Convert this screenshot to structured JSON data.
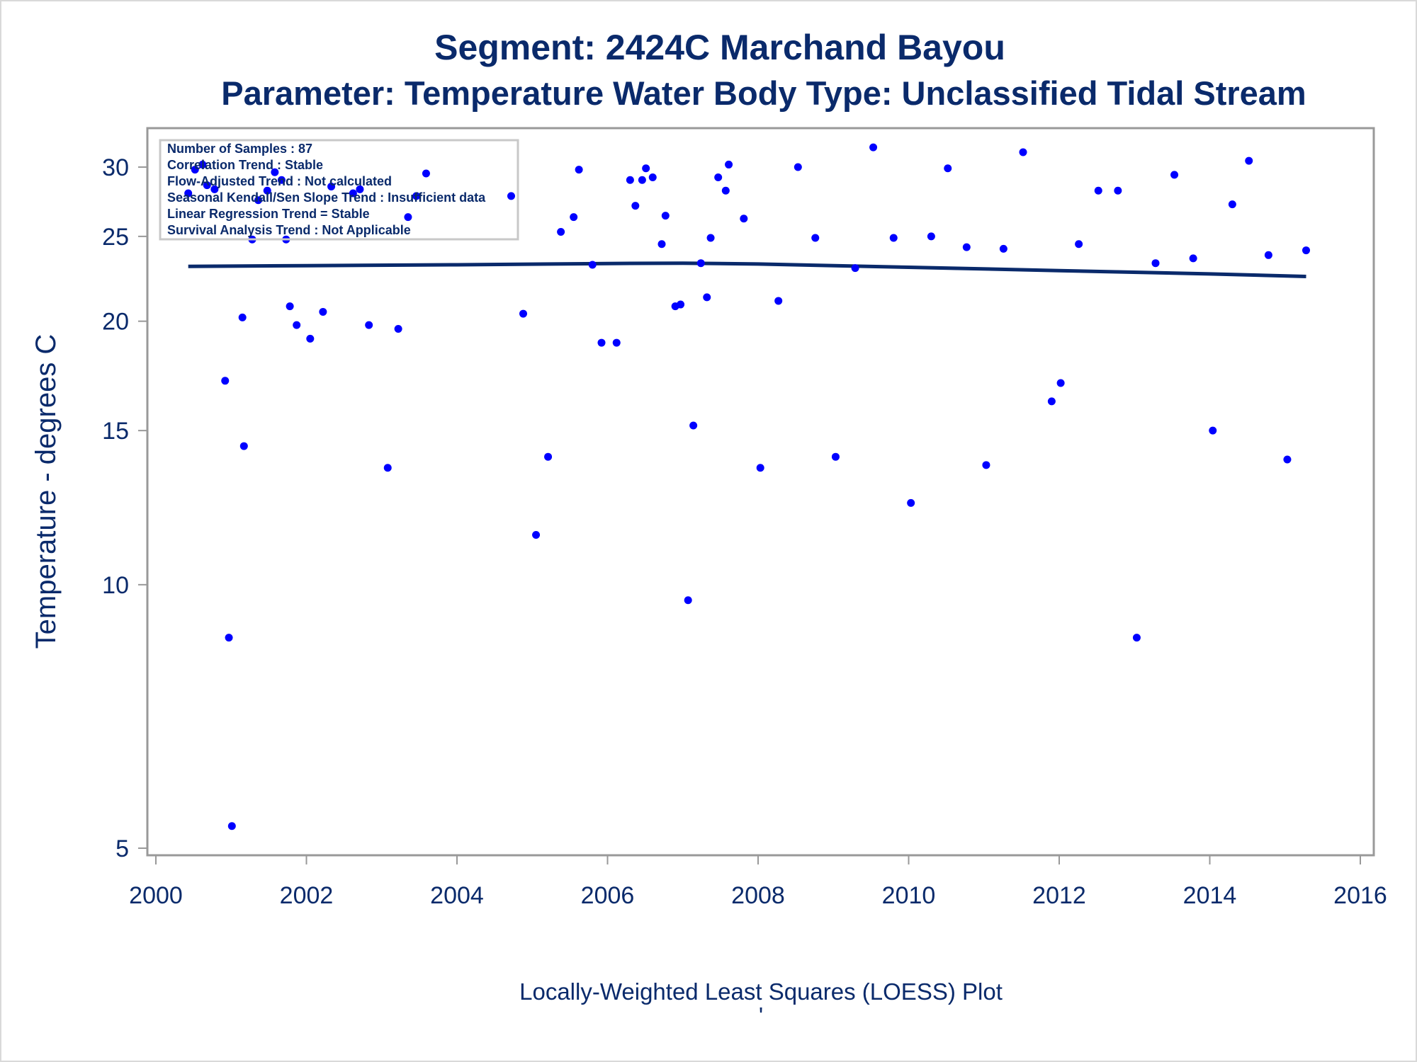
{
  "colors": {
    "text": "#0a2a6b",
    "points": "#0000ff",
    "loess_line": "#0a2a6b",
    "frame": "#999999"
  },
  "chart_data": {
    "type": "scatter",
    "title": "Segment: 2424C  Marchand Bayou",
    "subtitle": "Parameter: Temperature   Water Body Type: Unclassified Tidal Stream",
    "xlabel": "Locally-Weighted Least Squares (LOESS) Plot",
    "ylabel": "Temperature - degrees C",
    "footnote": "'",
    "y_scale": "log",
    "xlim": [
      2000,
      2016
    ],
    "ylim": [
      5,
      32
    ],
    "x_ticks": [
      "2000",
      "2002",
      "2004",
      "2006",
      "2008",
      "2010",
      "2012",
      "2014",
      "2016"
    ],
    "y_ticks": [
      "5",
      "10",
      "15",
      "20",
      "25",
      "30"
    ],
    "grid": false,
    "legend_position": "top-left",
    "inset_text": [
      "Number of Samples : 87",
      "Correlation Trend : Stable",
      "Flow-Adjusted Trend : Not calculated",
      "Seasonal Kendall/Sen Slope Trend : Insufficient data",
      "Linear Regression Trend = Stable",
      "Survival Analysis Trend : Not Applicable"
    ],
    "series": [
      {
        "type": "scatter",
        "points": [
          [
            2000.43,
            28.0
          ],
          [
            2000.52,
            29.8
          ],
          [
            2000.62,
            30.2
          ],
          [
            2000.68,
            28.6
          ],
          [
            2000.78,
            28.3
          ],
          [
            2000.92,
            17.1
          ],
          [
            2000.97,
            8.7
          ],
          [
            2001.01,
            5.3
          ],
          [
            2001.15,
            20.2
          ],
          [
            2001.17,
            14.4
          ],
          [
            2001.28,
            24.8
          ],
          [
            2001.36,
            27.5
          ],
          [
            2001.48,
            28.2
          ],
          [
            2001.58,
            29.6
          ],
          [
            2001.67,
            29.0
          ],
          [
            2001.73,
            24.8
          ],
          [
            2001.78,
            20.8
          ],
          [
            2001.87,
            19.8
          ],
          [
            2002.05,
            19.1
          ],
          [
            2002.22,
            20.5
          ],
          [
            2002.33,
            28.5
          ],
          [
            2002.62,
            28.0
          ],
          [
            2002.71,
            28.3
          ],
          [
            2002.83,
            19.8
          ],
          [
            2003.08,
            13.6
          ],
          [
            2003.22,
            19.6
          ],
          [
            2003.35,
            26.3
          ],
          [
            2003.46,
            27.8
          ],
          [
            2003.59,
            29.5
          ],
          [
            2004.72,
            27.8
          ],
          [
            2004.88,
            20.4
          ],
          [
            2005.05,
            11.4
          ],
          [
            2005.21,
            14.0
          ],
          [
            2005.38,
            25.3
          ],
          [
            2005.55,
            26.3
          ],
          [
            2005.62,
            29.8
          ],
          [
            2005.8,
            23.2
          ],
          [
            2005.92,
            18.9
          ],
          [
            2006.12,
            18.9
          ],
          [
            2006.3,
            29.0
          ],
          [
            2006.37,
            27.1
          ],
          [
            2006.46,
            29.0
          ],
          [
            2006.51,
            29.9
          ],
          [
            2006.6,
            29.2
          ],
          [
            2006.72,
            24.5
          ],
          [
            2006.77,
            26.4
          ],
          [
            2006.9,
            20.8
          ],
          [
            2006.97,
            20.9
          ],
          [
            2007.07,
            9.6
          ],
          [
            2007.14,
            15.2
          ],
          [
            2007.24,
            23.3
          ],
          [
            2007.32,
            21.3
          ],
          [
            2007.37,
            24.9
          ],
          [
            2007.47,
            29.2
          ],
          [
            2007.57,
            28.2
          ],
          [
            2007.61,
            30.2
          ],
          [
            2007.81,
            26.2
          ],
          [
            2008.03,
            13.6
          ],
          [
            2008.27,
            21.1
          ],
          [
            2008.53,
            30.0
          ],
          [
            2008.76,
            24.9
          ],
          [
            2009.03,
            14.0
          ],
          [
            2009.29,
            23.0
          ],
          [
            2009.53,
            31.6
          ],
          [
            2009.8,
            24.9
          ],
          [
            2010.03,
            12.4
          ],
          [
            2010.3,
            25.0
          ],
          [
            2010.52,
            29.9
          ],
          [
            2010.77,
            24.3
          ],
          [
            2011.03,
            13.7
          ],
          [
            2011.26,
            24.2
          ],
          [
            2011.52,
            31.2
          ],
          [
            2011.9,
            16.2
          ],
          [
            2012.02,
            17.0
          ],
          [
            2012.26,
            24.5
          ],
          [
            2012.52,
            28.2
          ],
          [
            2012.78,
            28.2
          ],
          [
            2013.03,
            8.7
          ],
          [
            2013.28,
            23.3
          ],
          [
            2013.53,
            29.4
          ],
          [
            2013.78,
            23.6
          ],
          [
            2014.04,
            15.0
          ],
          [
            2014.3,
            27.2
          ],
          [
            2014.52,
            30.5
          ],
          [
            2014.78,
            23.8
          ],
          [
            2015.03,
            13.9
          ],
          [
            2015.28,
            24.1
          ]
        ]
      },
      {
        "type": "line",
        "x": [
          2000.43,
          2002.0,
          2004.0,
          2006.0,
          2007.0,
          2008.0,
          2010.0,
          2012.0,
          2014.0,
          2015.28
        ],
        "y": [
          23.1,
          23.15,
          23.2,
          23.28,
          23.3,
          23.25,
          23.05,
          22.85,
          22.65,
          22.5
        ]
      }
    ]
  }
}
